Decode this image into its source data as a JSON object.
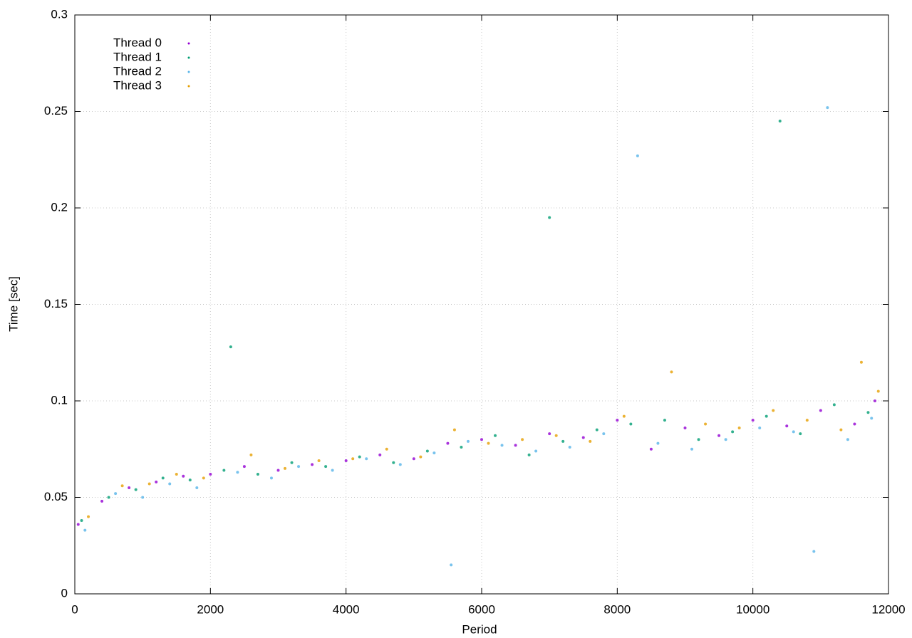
{
  "chart_data": {
    "type": "scatter",
    "x_label": "Period",
    "y_label": "Time [sec]",
    "xlim": [
      0,
      12000
    ],
    "ylim": [
      0,
      0.3
    ],
    "xticks": [
      0,
      2000,
      4000,
      6000,
      8000,
      10000,
      12000
    ],
    "yticks": [
      0,
      0.05,
      0.1,
      0.15,
      0.2,
      0.25,
      0.3
    ],
    "grid": true,
    "legend": "top-left",
    "series": [
      {
        "name": "Thread 0",
        "color": "#9400d3",
        "x": [
          50,
          400,
          800,
          1200,
          1600,
          2000,
          2500,
          3000,
          3500,
          4000,
          4500,
          5000,
          5500,
          6000,
          6500,
          7000,
          7500,
          8000,
          8500,
          9000,
          9500,
          10000,
          10500,
          11000,
          11500,
          11800
        ],
        "values": [
          0.036,
          0.048,
          0.055,
          0.058,
          0.061,
          0.062,
          0.066,
          0.064,
          0.067,
          0.069,
          0.072,
          0.07,
          0.078,
          0.08,
          0.077,
          0.083,
          0.081,
          0.09,
          0.075,
          0.086,
          0.082,
          0.09,
          0.087,
          0.095,
          0.088,
          0.1
        ]
      },
      {
        "name": "Thread 1",
        "color": "#009e73",
        "x": [
          100,
          500,
          900,
          1300,
          1700,
          2200,
          2300,
          2700,
          3200,
          3700,
          4200,
          4700,
          5200,
          5700,
          6200,
          6700,
          7000,
          7200,
          7700,
          8200,
          8700,
          9200,
          9700,
          10200,
          10400,
          10700,
          11200,
          11700
        ],
        "values": [
          0.038,
          0.05,
          0.054,
          0.06,
          0.059,
          0.064,
          0.128,
          0.062,
          0.068,
          0.066,
          0.071,
          0.068,
          0.074,
          0.076,
          0.082,
          0.072,
          0.195,
          0.079,
          0.085,
          0.088,
          0.09,
          0.08,
          0.084,
          0.092,
          0.245,
          0.083,
          0.098,
          0.094
        ]
      },
      {
        "name": "Thread 2",
        "color": "#56b4e9",
        "x": [
          150,
          600,
          1000,
          1400,
          1800,
          2400,
          2900,
          3300,
          3800,
          4300,
          4800,
          5300,
          5550,
          5800,
          6300,
          6800,
          7300,
          7800,
          8300,
          8600,
          9100,
          9600,
          10100,
          10600,
          10900,
          11100,
          11400,
          11750
        ],
        "values": [
          0.033,
          0.052,
          0.05,
          0.057,
          0.055,
          0.063,
          0.06,
          0.066,
          0.064,
          0.07,
          0.067,
          0.073,
          0.015,
          0.079,
          0.077,
          0.074,
          0.076,
          0.083,
          0.227,
          0.078,
          0.075,
          0.08,
          0.086,
          0.084,
          0.022,
          0.252,
          0.08,
          0.091
        ]
      },
      {
        "name": "Thread 3",
        "color": "#e69f00",
        "x": [
          200,
          700,
          1100,
          1500,
          1900,
          2600,
          3100,
          3600,
          4100,
          4600,
          5100,
          5600,
          6100,
          6600,
          7100,
          7600,
          8100,
          8800,
          9300,
          9800,
          10300,
          10800,
          11300,
          11600,
          11850
        ],
        "values": [
          0.04,
          0.056,
          0.057,
          0.062,
          0.06,
          0.072,
          0.065,
          0.069,
          0.07,
          0.075,
          0.071,
          0.085,
          0.078,
          0.08,
          0.082,
          0.079,
          0.092,
          0.115,
          0.088,
          0.086,
          0.095,
          0.09,
          0.085,
          0.12,
          0.105
        ]
      }
    ]
  }
}
